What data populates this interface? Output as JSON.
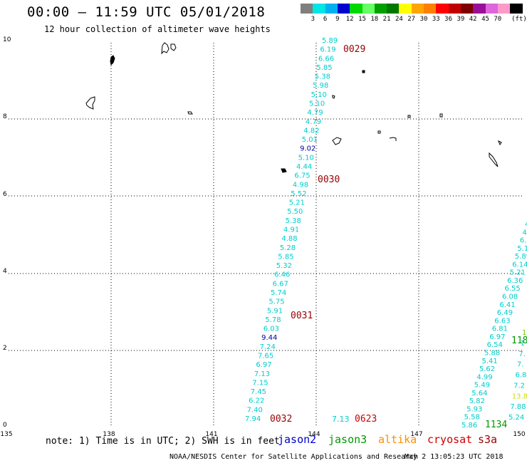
{
  "title": "00:00 – 11:59 UTC 05/01/2018",
  "subtitle": "12 hour collection of altimeter wave heights",
  "colorbar": {
    "colors": [
      "#7f7f7f",
      "#00e5e5",
      "#00b0f0",
      "#0000d0",
      "#00d800",
      "#66ff66",
      "#00a000",
      "#007800",
      "#ffff00",
      "#ffa500",
      "#ff7f00",
      "#ff0000",
      "#c00000",
      "#7f0000",
      "#9a0f9a",
      "#dd66dd",
      "#ff99cc",
      "#000000"
    ],
    "labels": [
      "3",
      "6",
      "9",
      "12",
      "15",
      "18",
      "21",
      "24",
      "27",
      "30",
      "33",
      "36",
      "39",
      "42",
      "45",
      "70"
    ],
    "unit": "(ft)"
  },
  "x_ticks": [
    "135",
    "138",
    "141",
    "144",
    "147",
    "150"
  ],
  "y_ticks": [
    "0",
    "2",
    "4",
    "6",
    "8",
    "10"
  ],
  "note": "note: 1) Time is in UTC; 2) SWH is in feet",
  "satellites": [
    {
      "name": "jason2",
      "color": "#0000cc"
    },
    {
      "name": "jason3",
      "color": "#009900"
    },
    {
      "name": "altika",
      "color": "#ff8c00"
    },
    {
      "name": "cryosat",
      "color": "#cc0000"
    },
    {
      "name": "s3a",
      "color": "#990000"
    }
  ],
  "footer_left": "NOAA/NESDIS Center for Satellite Applications and Research",
  "footer_right": "May  2 13:05:23 UTC 2018",
  "time_labels": [
    {
      "text": "0029",
      "color": "#990000"
    },
    {
      "text": "0030",
      "color": "#990000"
    },
    {
      "text": "0031",
      "color": "#990000"
    },
    {
      "text": "0032",
      "color": "#990000"
    },
    {
      "text": "0623",
      "color": "#cc0000"
    },
    {
      "text": "1134",
      "color": "#009900"
    },
    {
      "text": "118",
      "color": "#009900"
    }
  ],
  "track_a": [
    {
      "v": "5.89",
      "c": "#00cccc"
    },
    {
      "v": "6.19",
      "c": "#00cccc"
    },
    {
      "v": "6.66",
      "c": "#00cccc"
    },
    {
      "v": "5.85",
      "c": "#00cccc"
    },
    {
      "v": "5.38",
      "c": "#00cccc"
    },
    {
      "v": "5.98",
      "c": "#00cccc"
    },
    {
      "v": "5.10",
      "c": "#00cccc"
    },
    {
      "v": "5.10",
      "c": "#00cccc"
    },
    {
      "v": "4.79",
      "c": "#00cccc"
    },
    {
      "v": "4.79",
      "c": "#00cccc"
    },
    {
      "v": "4.82",
      "c": "#00cccc"
    },
    {
      "v": "5.01",
      "c": "#00cccc"
    },
    {
      "v": "9.02",
      "c": "#000099"
    },
    {
      "v": "5.10",
      "c": "#00cccc"
    },
    {
      "v": "4.44",
      "c": "#00cccc"
    },
    {
      "v": "6.75",
      "c": "#00cccc"
    },
    {
      "v": "4.98",
      "c": "#00cccc"
    },
    {
      "v": "5.52",
      "c": "#00cccc"
    },
    {
      "v": "5.21",
      "c": "#00cccc"
    },
    {
      "v": "5.50",
      "c": "#00cccc"
    },
    {
      "v": "5.38",
      "c": "#00cccc"
    },
    {
      "v": "4.91",
      "c": "#00cccc"
    },
    {
      "v": "4.88",
      "c": "#00cccc"
    },
    {
      "v": "5.28",
      "c": "#00cccc"
    },
    {
      "v": "5.85",
      "c": "#00cccc"
    },
    {
      "v": "5.32",
      "c": "#00cccc"
    },
    {
      "v": "6.46",
      "c": "#00cccc"
    },
    {
      "v": "6.67",
      "c": "#00cccc"
    },
    {
      "v": "5.74",
      "c": "#00cccc"
    },
    {
      "v": "5.75",
      "c": "#00cccc"
    },
    {
      "v": "5.91",
      "c": "#00cccc"
    },
    {
      "v": "5.78",
      "c": "#00cccc"
    },
    {
      "v": "6.03",
      "c": "#00cccc"
    },
    {
      "v": "9.44",
      "c": "#000099"
    },
    {
      "v": "7.24",
      "c": "#00cccc"
    },
    {
      "v": "7.65",
      "c": "#00cccc"
    },
    {
      "v": "6.97",
      "c": "#00cccc"
    },
    {
      "v": "7.13",
      "c": "#00cccc"
    },
    {
      "v": "7.15",
      "c": "#00cccc"
    },
    {
      "v": "7.45",
      "c": "#00cccc"
    },
    {
      "v": "6.22",
      "c": "#00cccc"
    },
    {
      "v": "7.40",
      "c": "#00cccc"
    },
    {
      "v": "7.94",
      "c": "#00cccc"
    }
  ],
  "track_b": [
    {
      "v": "4",
      "c": "#00cccc"
    },
    {
      "v": "4",
      "c": "#00cccc"
    },
    {
      "v": "6.",
      "c": "#00cccc"
    },
    {
      "v": "5.1",
      "c": "#00cccc"
    },
    {
      "v": "5.89",
      "c": "#00cccc"
    },
    {
      "v": "6.14",
      "c": "#00cccc"
    },
    {
      "v": "5.21",
      "c": "#00cccc"
    },
    {
      "v": "6.36",
      "c": "#00cccc"
    },
    {
      "v": "6.55",
      "c": "#00cccc"
    },
    {
      "v": "6.08",
      "c": "#00cccc"
    },
    {
      "v": "6.41",
      "c": "#00cccc"
    },
    {
      "v": "6.49",
      "c": "#00cccc"
    },
    {
      "v": "6.63",
      "c": "#00cccc"
    },
    {
      "v": "6.81",
      "c": "#00cccc"
    },
    {
      "v": "6.97",
      "c": "#00cccc"
    },
    {
      "v": "6.54",
      "c": "#00cccc"
    },
    {
      "v": "5.88",
      "c": "#00cccc"
    },
    {
      "v": "5.41",
      "c": "#00cccc"
    },
    {
      "v": "5.62",
      "c": "#00cccc"
    },
    {
      "v": "4.99",
      "c": "#00cccc"
    },
    {
      "v": "5.49",
      "c": "#00cccc"
    },
    {
      "v": "5.64",
      "c": "#00cccc"
    },
    {
      "v": "5.82",
      "c": "#00cccc"
    },
    {
      "v": "5.93",
      "c": "#00cccc"
    },
    {
      "v": "5.58",
      "c": "#00cccc"
    },
    {
      "v": "5.86",
      "c": "#00cccc"
    }
  ],
  "track_c": [
    {
      "v": "1",
      "c": "#66cc00"
    },
    {
      "v": "1",
      "c": "#00cccc"
    },
    {
      "v": "7.",
      "c": "#00cccc"
    },
    {
      "v": "7.",
      "c": "#00cccc"
    },
    {
      "v": "6.8",
      "c": "#00cccc"
    },
    {
      "v": "7.2",
      "c": "#00cccc"
    },
    {
      "v": "13.8",
      "c": "#ccdd00"
    },
    {
      "v": "7.88",
      "c": "#00cccc"
    },
    {
      "v": "5.24",
      "c": "#00cccc"
    }
  ],
  "lone_value": {
    "v": "7.13",
    "c": "#00cccc"
  }
}
